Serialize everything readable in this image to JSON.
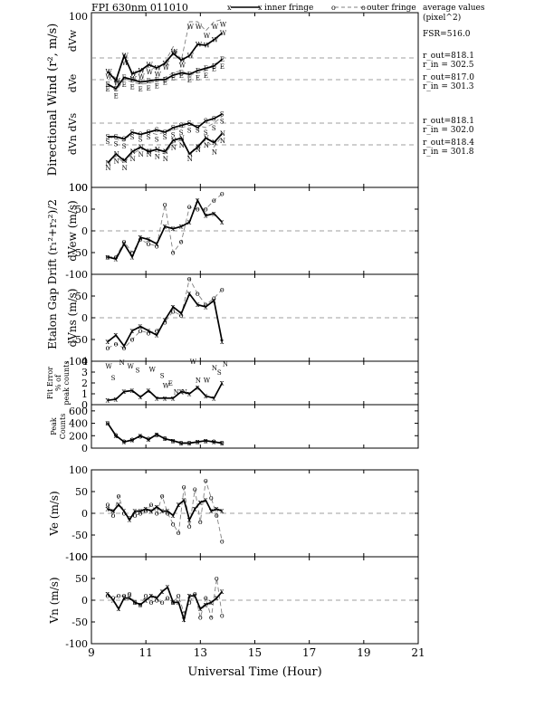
{
  "title": "FPI 630nm 011010",
  "legend": {
    "inner": "inner fringe",
    "outer": "outer fringe",
    "inner_marker": "x",
    "outer_marker": "o"
  },
  "side": {
    "heading1": "average values",
    "heading2": "(pixel^2)",
    "fsr": "FSR=516.0",
    "w_out": "r_out=818.1",
    "w_in": "r_in = 302.5",
    "e_out": "r_out=817.0",
    "e_in": "r_in = 301.3",
    "s_out": "r_out=818.1",
    "s_in": "r_in = 302.0",
    "n_out": "r_out=818.4",
    "n_in": "r_in = 301.8"
  },
  "chart_data": [
    {
      "id": "directional",
      "type": "line",
      "ylabel": "Directional Wind (r², m/s)",
      "inner_labels": [
        "dVw",
        "dVe",
        "dVn  dVs"
      ],
      "yticks": [
        "100",
        "100"
      ],
      "series": [
        {
          "name": "dVw",
          "letter": "W",
          "x": [
            9.6,
            9.9,
            10.2,
            10.5,
            10.8,
            11.1,
            11.4,
            11.7,
            12.0,
            12.3,
            12.6,
            12.9,
            13.2,
            13.5,
            13.8
          ],
          "inner": [
            -30,
            -50,
            5,
            -35,
            -28,
            -15,
            -22,
            -12,
            10,
            -5,
            5,
            30,
            28,
            40,
            55
          ],
          "outer": [
            -30,
            -45,
            0,
            -35,
            -30,
            -20,
            -25,
            -10,
            25,
            -5,
            80,
            80,
            60,
            80,
            85
          ]
        },
        {
          "name": "dVe",
          "letter": "E",
          "x": [
            9.6,
            9.9,
            10.2,
            10.5,
            10.8,
            11.1,
            11.4,
            11.7,
            12.0,
            12.3,
            12.6,
            12.9,
            13.2,
            13.5,
            13.8
          ],
          "inner": [
            -10,
            -20,
            5,
            0,
            -5,
            -3,
            0,
            0,
            10,
            15,
            12,
            20,
            25,
            30,
            45
          ],
          "outer": [
            -10,
            -25,
            0,
            -5,
            -10,
            -8,
            -3,
            5,
            15,
            20,
            10,
            15,
            20,
            35,
            40
          ]
        },
        {
          "name": "dVs",
          "letter": "S",
          "x": [
            9.6,
            9.9,
            10.2,
            10.5,
            10.8,
            11.1,
            11.4,
            11.7,
            12.0,
            12.3,
            12.6,
            12.9,
            13.2,
            13.5,
            13.8
          ],
          "inner": [
            -30,
            -30,
            -35,
            -20,
            -25,
            -20,
            -15,
            -20,
            -10,
            -5,
            0,
            -10,
            5,
            10,
            20
          ],
          "outer": [
            -30,
            -35,
            -40,
            -20,
            -25,
            -20,
            -25,
            -20,
            -15,
            -10,
            -5,
            -5,
            -10,
            0,
            15
          ]
        },
        {
          "name": "dVn",
          "letter": "N",
          "x": [
            9.6,
            9.9,
            10.2,
            10.5,
            10.8,
            11.1,
            11.4,
            11.7,
            12.0,
            12.3,
            12.6,
            12.9,
            13.2,
            13.5,
            13.8
          ],
          "inner": [
            -40,
            -20,
            -35,
            -15,
            -5,
            -15,
            -10,
            -15,
            10,
            15,
            -20,
            -5,
            15,
            5,
            25
          ],
          "outer": [
            -40,
            -25,
            -40,
            -20,
            -10,
            -10,
            -15,
            -20,
            5,
            10,
            -20,
            0,
            10,
            -5,
            20
          ]
        }
      ]
    },
    {
      "id": "dvew",
      "type": "line",
      "ylabel": "dVew (m/s)",
      "ylim": [
        -100,
        100
      ],
      "yticks": [
        "100",
        "50",
        "0",
        "-50",
        "-100"
      ],
      "x": [
        9.6,
        9.9,
        10.2,
        10.5,
        10.8,
        11.1,
        11.4,
        11.7,
        12.0,
        12.3,
        12.6,
        12.9,
        13.2,
        13.5,
        13.8
      ],
      "inner": [
        -60,
        -65,
        -30,
        -60,
        -15,
        -20,
        -30,
        10,
        5,
        10,
        20,
        70,
        35,
        40,
        20
      ],
      "outer": [
        -60,
        -60,
        -25,
        -50,
        -20,
        -30,
        -35,
        60,
        -50,
        -25,
        55,
        50,
        50,
        70,
        85
      ]
    },
    {
      "id": "dvns",
      "type": "line",
      "ylabel": "dVns (m/s)",
      "ylim": [
        -100,
        100
      ],
      "yticks": [
        "50",
        "0",
        "-50",
        "-100"
      ],
      "x": [
        9.6,
        9.9,
        10.2,
        10.5,
        10.8,
        11.1,
        11.4,
        11.7,
        12.0,
        12.3,
        12.6,
        12.9,
        13.2,
        13.5,
        13.8
      ],
      "inner": [
        -55,
        -40,
        -65,
        -30,
        -20,
        -30,
        -40,
        -5,
        25,
        10,
        55,
        30,
        25,
        40,
        -55
      ],
      "outer": [
        -70,
        -60,
        -70,
        -50,
        -30,
        -35,
        -30,
        -10,
        15,
        5,
        90,
        55,
        30,
        45,
        65
      ]
    },
    {
      "id": "gapdrift_label",
      "ylabel": "Etalon Gap Drift (r₁²+r₂²)/2"
    },
    {
      "id": "fiterror",
      "type": "line",
      "ylabel": "Fit Error % of peak counts",
      "ylim": [
        0,
        4
      ],
      "yticks": [
        "4",
        "3",
        "2",
        "1",
        "0"
      ],
      "x": [
        9.6,
        9.9,
        10.2,
        10.5,
        10.8,
        11.1,
        11.4,
        11.7,
        12.0,
        12.3,
        12.6,
        12.9,
        13.2,
        13.5,
        13.8
      ],
      "inner": [
        0.4,
        0.5,
        1.2,
        1.3,
        0.7,
        1.3,
        0.6,
        0.6,
        0.6,
        1.2,
        1.0,
        1.6,
        0.8,
        0.6,
        2.0
      ],
      "letters": [
        {
          "t": "W",
          "x": 9.6,
          "y": 3.6
        },
        {
          "t": "S",
          "x": 9.8,
          "y": 2.5
        },
        {
          "t": "N",
          "x": 10.1,
          "y": 3.9
        },
        {
          "t": "W",
          "x": 10.4,
          "y": 3.6
        },
        {
          "t": "S",
          "x": 10.7,
          "y": 3.2
        },
        {
          "t": "W",
          "x": 11.2,
          "y": 3.3
        },
        {
          "t": "S",
          "x": 11.6,
          "y": 2.7
        },
        {
          "t": "W",
          "x": 11.7,
          "y": 1.8
        },
        {
          "t": "E",
          "x": 11.9,
          "y": 2.0
        },
        {
          "t": "N",
          "x": 12.1,
          "y": 1.2
        },
        {
          "t": "N",
          "x": 12.4,
          "y": 1.2
        },
        {
          "t": "W",
          "x": 12.7,
          "y": 4.0
        },
        {
          "t": "N",
          "x": 12.9,
          "y": 2.3
        },
        {
          "t": "W",
          "x": 13.2,
          "y": 2.3
        },
        {
          "t": "N",
          "x": 13.5,
          "y": 3.4
        },
        {
          "t": "S",
          "x": 13.7,
          "y": 3.0
        },
        {
          "t": "N",
          "x": 13.9,
          "y": 3.8
        }
      ]
    },
    {
      "id": "peak",
      "type": "line",
      "ylabel": "Peak Counts",
      "ylim": [
        0,
        700
      ],
      "yticks": [
        "600",
        "400",
        "200",
        "0"
      ],
      "x": [
        9.6,
        9.9,
        10.2,
        10.5,
        10.8,
        11.1,
        11.4,
        11.7,
        12.0,
        12.3,
        12.6,
        12.9,
        13.2,
        13.5,
        13.8
      ],
      "inner": [
        400,
        200,
        100,
        130,
        200,
        140,
        220,
        150,
        120,
        80,
        80,
        100,
        120,
        100,
        80
      ],
      "outer": [
        400,
        210,
        110,
        140,
        190,
        150,
        210,
        160,
        120,
        90,
        90,
        100,
        120,
        110,
        90
      ]
    },
    {
      "id": "ve",
      "type": "line",
      "ylabel": "Ve (m/s)",
      "ylim": [
        -100,
        100
      ],
      "yticks": [
        "100",
        "50",
        "0",
        "-50",
        "-100"
      ],
      "x": [
        9.6,
        9.8,
        10.0,
        10.2,
        10.4,
        10.6,
        10.8,
        11.0,
        11.2,
        11.4,
        11.6,
        11.8,
        12.0,
        12.2,
        12.4,
        12.6,
        12.8,
        13.0,
        13.2,
        13.4,
        13.6,
        13.8
      ],
      "inner": [
        10,
        5,
        20,
        5,
        -15,
        5,
        5,
        10,
        5,
        15,
        5,
        5,
        -5,
        20,
        30,
        -15,
        10,
        25,
        30,
        5,
        10,
        5
      ],
      "outer": [
        20,
        -5,
        40,
        0,
        -10,
        -5,
        0,
        5,
        20,
        0,
        40,
        0,
        -25,
        -45,
        60,
        -30,
        55,
        -20,
        75,
        35,
        -5,
        -65
      ]
    },
    {
      "id": "vn",
      "type": "line",
      "ylabel": "Vn (m/s)",
      "xlabel": "Universal Time (Hour)",
      "ylim": [
        -100,
        100
      ],
      "yticks": [
        "100",
        "50",
        "0",
        "-50",
        "-100"
      ],
      "xticks": [
        "9",
        "11",
        "13",
        "15",
        "17",
        "19",
        "21"
      ],
      "xlim": [
        9,
        21
      ],
      "x": [
        9.6,
        9.8,
        10.0,
        10.2,
        10.4,
        10.6,
        10.8,
        11.0,
        11.2,
        11.4,
        11.6,
        11.8,
        12.0,
        12.2,
        12.4,
        12.6,
        12.8,
        13.0,
        13.2,
        13.4,
        13.6,
        13.8
      ],
      "inner": [
        15,
        0,
        -20,
        5,
        5,
        -5,
        -10,
        0,
        10,
        5,
        20,
        30,
        -5,
        -5,
        -45,
        10,
        10,
        -20,
        -10,
        -5,
        5,
        20
      ],
      "outer": [
        10,
        5,
        10,
        10,
        15,
        -5,
        -10,
        10,
        -5,
        0,
        -5,
        5,
        -5,
        10,
        -30,
        -5,
        15,
        -40,
        5,
        -40,
        50,
        -35
      ]
    }
  ]
}
